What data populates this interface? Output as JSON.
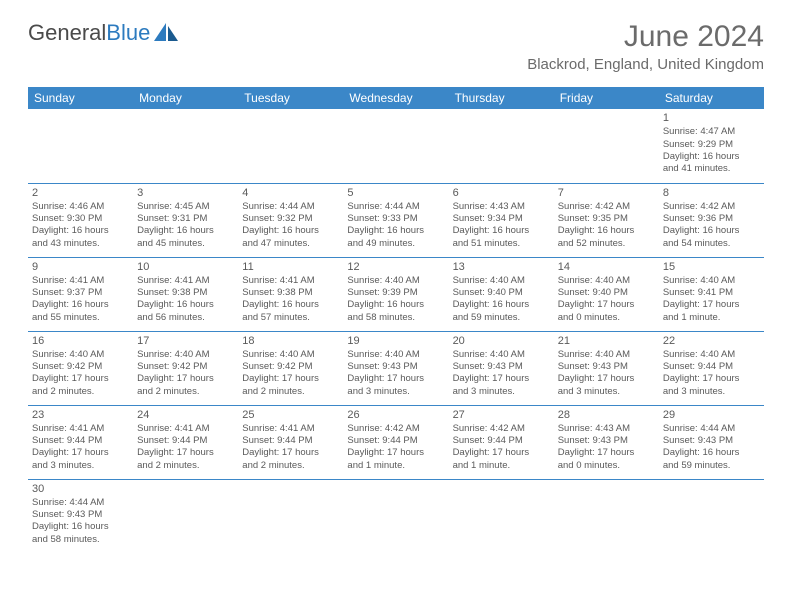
{
  "logo": {
    "text1": "General",
    "text2": "Blue"
  },
  "title": "June 2024",
  "location": "Blackrod, England, United Kingdom",
  "header_bg": "#3b87c8",
  "days_of_week": [
    "Sunday",
    "Monday",
    "Tuesday",
    "Wednesday",
    "Thursday",
    "Friday",
    "Saturday"
  ],
  "weeks": [
    [
      null,
      null,
      null,
      null,
      null,
      null,
      {
        "d": "1",
        "sr": "Sunrise: 4:47 AM",
        "ss": "Sunset: 9:29 PM",
        "dl1": "Daylight: 16 hours",
        "dl2": "and 41 minutes."
      }
    ],
    [
      {
        "d": "2",
        "sr": "Sunrise: 4:46 AM",
        "ss": "Sunset: 9:30 PM",
        "dl1": "Daylight: 16 hours",
        "dl2": "and 43 minutes."
      },
      {
        "d": "3",
        "sr": "Sunrise: 4:45 AM",
        "ss": "Sunset: 9:31 PM",
        "dl1": "Daylight: 16 hours",
        "dl2": "and 45 minutes."
      },
      {
        "d": "4",
        "sr": "Sunrise: 4:44 AM",
        "ss": "Sunset: 9:32 PM",
        "dl1": "Daylight: 16 hours",
        "dl2": "and 47 minutes."
      },
      {
        "d": "5",
        "sr": "Sunrise: 4:44 AM",
        "ss": "Sunset: 9:33 PM",
        "dl1": "Daylight: 16 hours",
        "dl2": "and 49 minutes."
      },
      {
        "d": "6",
        "sr": "Sunrise: 4:43 AM",
        "ss": "Sunset: 9:34 PM",
        "dl1": "Daylight: 16 hours",
        "dl2": "and 51 minutes."
      },
      {
        "d": "7",
        "sr": "Sunrise: 4:42 AM",
        "ss": "Sunset: 9:35 PM",
        "dl1": "Daylight: 16 hours",
        "dl2": "and 52 minutes."
      },
      {
        "d": "8",
        "sr": "Sunrise: 4:42 AM",
        "ss": "Sunset: 9:36 PM",
        "dl1": "Daylight: 16 hours",
        "dl2": "and 54 minutes."
      }
    ],
    [
      {
        "d": "9",
        "sr": "Sunrise: 4:41 AM",
        "ss": "Sunset: 9:37 PM",
        "dl1": "Daylight: 16 hours",
        "dl2": "and 55 minutes."
      },
      {
        "d": "10",
        "sr": "Sunrise: 4:41 AM",
        "ss": "Sunset: 9:38 PM",
        "dl1": "Daylight: 16 hours",
        "dl2": "and 56 minutes."
      },
      {
        "d": "11",
        "sr": "Sunrise: 4:41 AM",
        "ss": "Sunset: 9:38 PM",
        "dl1": "Daylight: 16 hours",
        "dl2": "and 57 minutes."
      },
      {
        "d": "12",
        "sr": "Sunrise: 4:40 AM",
        "ss": "Sunset: 9:39 PM",
        "dl1": "Daylight: 16 hours",
        "dl2": "and 58 minutes."
      },
      {
        "d": "13",
        "sr": "Sunrise: 4:40 AM",
        "ss": "Sunset: 9:40 PM",
        "dl1": "Daylight: 16 hours",
        "dl2": "and 59 minutes."
      },
      {
        "d": "14",
        "sr": "Sunrise: 4:40 AM",
        "ss": "Sunset: 9:40 PM",
        "dl1": "Daylight: 17 hours",
        "dl2": "and 0 minutes."
      },
      {
        "d": "15",
        "sr": "Sunrise: 4:40 AM",
        "ss": "Sunset: 9:41 PM",
        "dl1": "Daylight: 17 hours",
        "dl2": "and 1 minute."
      }
    ],
    [
      {
        "d": "16",
        "sr": "Sunrise: 4:40 AM",
        "ss": "Sunset: 9:42 PM",
        "dl1": "Daylight: 17 hours",
        "dl2": "and 2 minutes."
      },
      {
        "d": "17",
        "sr": "Sunrise: 4:40 AM",
        "ss": "Sunset: 9:42 PM",
        "dl1": "Daylight: 17 hours",
        "dl2": "and 2 minutes."
      },
      {
        "d": "18",
        "sr": "Sunrise: 4:40 AM",
        "ss": "Sunset: 9:42 PM",
        "dl1": "Daylight: 17 hours",
        "dl2": "and 2 minutes."
      },
      {
        "d": "19",
        "sr": "Sunrise: 4:40 AM",
        "ss": "Sunset: 9:43 PM",
        "dl1": "Daylight: 17 hours",
        "dl2": "and 3 minutes."
      },
      {
        "d": "20",
        "sr": "Sunrise: 4:40 AM",
        "ss": "Sunset: 9:43 PM",
        "dl1": "Daylight: 17 hours",
        "dl2": "and 3 minutes."
      },
      {
        "d": "21",
        "sr": "Sunrise: 4:40 AM",
        "ss": "Sunset: 9:43 PM",
        "dl1": "Daylight: 17 hours",
        "dl2": "and 3 minutes."
      },
      {
        "d": "22",
        "sr": "Sunrise: 4:40 AM",
        "ss": "Sunset: 9:44 PM",
        "dl1": "Daylight: 17 hours",
        "dl2": "and 3 minutes."
      }
    ],
    [
      {
        "d": "23",
        "sr": "Sunrise: 4:41 AM",
        "ss": "Sunset: 9:44 PM",
        "dl1": "Daylight: 17 hours",
        "dl2": "and 3 minutes."
      },
      {
        "d": "24",
        "sr": "Sunrise: 4:41 AM",
        "ss": "Sunset: 9:44 PM",
        "dl1": "Daylight: 17 hours",
        "dl2": "and 2 minutes."
      },
      {
        "d": "25",
        "sr": "Sunrise: 4:41 AM",
        "ss": "Sunset: 9:44 PM",
        "dl1": "Daylight: 17 hours",
        "dl2": "and 2 minutes."
      },
      {
        "d": "26",
        "sr": "Sunrise: 4:42 AM",
        "ss": "Sunset: 9:44 PM",
        "dl1": "Daylight: 17 hours",
        "dl2": "and 1 minute."
      },
      {
        "d": "27",
        "sr": "Sunrise: 4:42 AM",
        "ss": "Sunset: 9:44 PM",
        "dl1": "Daylight: 17 hours",
        "dl2": "and 1 minute."
      },
      {
        "d": "28",
        "sr": "Sunrise: 4:43 AM",
        "ss": "Sunset: 9:43 PM",
        "dl1": "Daylight: 17 hours",
        "dl2": "and 0 minutes."
      },
      {
        "d": "29",
        "sr": "Sunrise: 4:44 AM",
        "ss": "Sunset: 9:43 PM",
        "dl1": "Daylight: 16 hours",
        "dl2": "and 59 minutes."
      }
    ],
    [
      {
        "d": "30",
        "sr": "Sunrise: 4:44 AM",
        "ss": "Sunset: 9:43 PM",
        "dl1": "Daylight: 16 hours",
        "dl2": "and 58 minutes."
      },
      null,
      null,
      null,
      null,
      null,
      null
    ]
  ]
}
